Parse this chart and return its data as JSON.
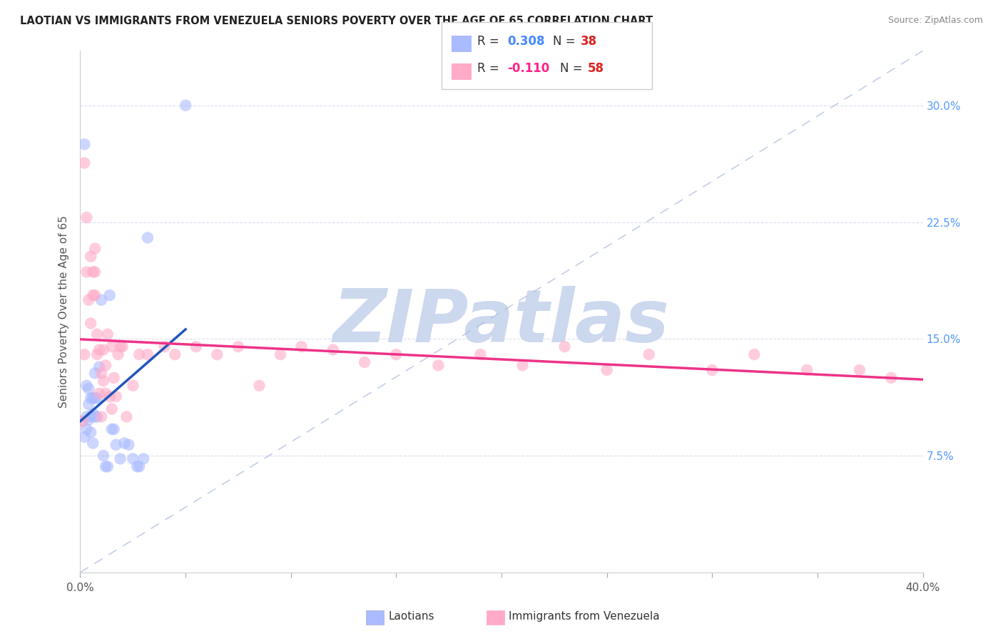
{
  "title": "LAOTIAN VS IMMIGRANTS FROM VENEZUELA SENIORS POVERTY OVER THE AGE OF 65 CORRELATION CHART",
  "source": "Source: ZipAtlas.com",
  "ylabel": "Seniors Poverty Over the Age of 65",
  "xlim": [
    0.0,
    0.4
  ],
  "ylim": [
    0.0,
    0.335
  ],
  "ytick_positions": [
    0.075,
    0.15,
    0.225,
    0.3
  ],
  "ytick_labels": [
    "7.5%",
    "15.0%",
    "22.5%",
    "30.0%"
  ],
  "xtick_positions": [
    0.0,
    0.05,
    0.1,
    0.15,
    0.2,
    0.25,
    0.3,
    0.35,
    0.4
  ],
  "xtick_labels": [
    "0.0%",
    "",
    "",
    "",
    "",
    "",
    "",
    "",
    "40.0%"
  ],
  "r1": "0.308",
  "n1": "38",
  "r2": "-0.110",
  "n2": "58",
  "color_blue": "#aabbff",
  "color_pink": "#ffaac8",
  "color_blue_line": "#2255bb",
  "color_pink_line": "#ee3388",
  "color_blue_text": "#4488ff",
  "color_pink_text": "#ff2288",
  "color_red_text": "#dd2222",
  "color_ref_line": "#bbbbcc",
  "watermark_color": "#ccd8ee",
  "laotian_x": [
    0.001,
    0.002,
    0.002,
    0.003,
    0.003,
    0.003,
    0.004,
    0.004,
    0.004,
    0.005,
    0.005,
    0.005,
    0.006,
    0.006,
    0.006,
    0.007,
    0.007,
    0.007,
    0.008,
    0.008,
    0.009,
    0.01,
    0.011,
    0.012,
    0.013,
    0.014,
    0.015,
    0.016,
    0.017,
    0.019,
    0.021,
    0.023,
    0.025,
    0.027,
    0.028,
    0.03,
    0.032,
    0.05
  ],
  "laotian_y": [
    0.097,
    0.275,
    0.087,
    0.092,
    0.1,
    0.12,
    0.098,
    0.108,
    0.118,
    0.09,
    0.1,
    0.112,
    0.083,
    0.102,
    0.112,
    0.1,
    0.112,
    0.128,
    0.1,
    0.112,
    0.132,
    0.175,
    0.075,
    0.068,
    0.068,
    0.178,
    0.092,
    0.092,
    0.082,
    0.073,
    0.083,
    0.082,
    0.073,
    0.068,
    0.068,
    0.073,
    0.215,
    0.3
  ],
  "venezuela_x": [
    0.001,
    0.002,
    0.002,
    0.003,
    0.003,
    0.004,
    0.005,
    0.005,
    0.006,
    0.006,
    0.007,
    0.007,
    0.007,
    0.008,
    0.008,
    0.009,
    0.009,
    0.01,
    0.01,
    0.011,
    0.011,
    0.012,
    0.012,
    0.013,
    0.014,
    0.015,
    0.015,
    0.016,
    0.017,
    0.018,
    0.019,
    0.02,
    0.022,
    0.025,
    0.028,
    0.032,
    0.04,
    0.045,
    0.055,
    0.065,
    0.075,
    0.085,
    0.095,
    0.105,
    0.12,
    0.135,
    0.15,
    0.17,
    0.19,
    0.21,
    0.23,
    0.25,
    0.27,
    0.3,
    0.32,
    0.345,
    0.37,
    0.385
  ],
  "venezuela_y": [
    0.097,
    0.263,
    0.14,
    0.193,
    0.228,
    0.175,
    0.16,
    0.203,
    0.178,
    0.193,
    0.178,
    0.193,
    0.208,
    0.14,
    0.153,
    0.115,
    0.143,
    0.1,
    0.128,
    0.143,
    0.123,
    0.115,
    0.133,
    0.153,
    0.113,
    0.145,
    0.105,
    0.125,
    0.113,
    0.14,
    0.145,
    0.145,
    0.1,
    0.12,
    0.14,
    0.14,
    0.145,
    0.14,
    0.145,
    0.14,
    0.145,
    0.12,
    0.14,
    0.145,
    0.143,
    0.135,
    0.14,
    0.133,
    0.14,
    0.133,
    0.145,
    0.13,
    0.14,
    0.13,
    0.14,
    0.13,
    0.13,
    0.125
  ]
}
